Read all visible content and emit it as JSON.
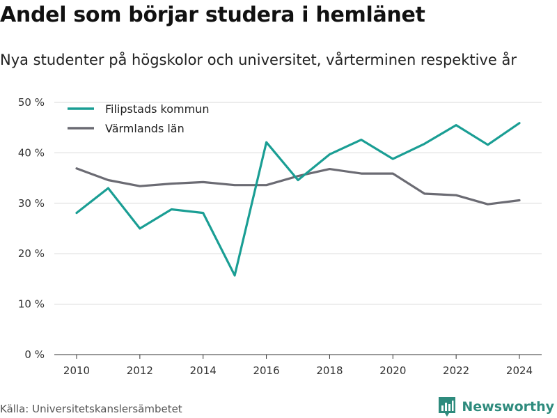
{
  "title": "Andel som börjar studera i hemlänet",
  "subtitle": "Nya studenter på högskolor och universitet, vårterminen respektive år",
  "source": "Källa: Universitetskanslersämbetet",
  "brand": {
    "name": "Newsworthy",
    "logo_icon": "newsworthy-logo-icon",
    "color": "#2e8b7d"
  },
  "chart_data": {
    "type": "line",
    "x": [
      2010,
      2011,
      2012,
      2013,
      2014,
      2015,
      2016,
      2017,
      2018,
      2019,
      2020,
      2021,
      2022,
      2023,
      2024
    ],
    "series": [
      {
        "name": "Filipstads kommun",
        "color": "#1a9e94",
        "values": [
          28.1,
          33.0,
          25.0,
          28.8,
          28.1,
          15.7,
          42.1,
          34.6,
          39.7,
          42.6,
          38.8,
          41.8,
          45.5,
          41.6,
          45.9
        ]
      },
      {
        "name": "Värmlands län",
        "color": "#6b6b73",
        "values": [
          36.9,
          34.6,
          33.4,
          33.9,
          34.2,
          33.6,
          33.6,
          35.4,
          36.8,
          35.9,
          35.9,
          31.9,
          31.6,
          29.8,
          30.6
        ]
      }
    ],
    "xticks": [
      "2010",
      "2012",
      "2014",
      "2016",
      "2018",
      "2020",
      "2022",
      "2024"
    ],
    "yticks": [
      "0 %",
      "10 %",
      "20 %",
      "30 %",
      "40 %",
      "50 %"
    ],
    "ylim": [
      0,
      50
    ],
    "xlim": [
      2010,
      2024
    ],
    "grid": true,
    "legend_position": "top-left"
  }
}
